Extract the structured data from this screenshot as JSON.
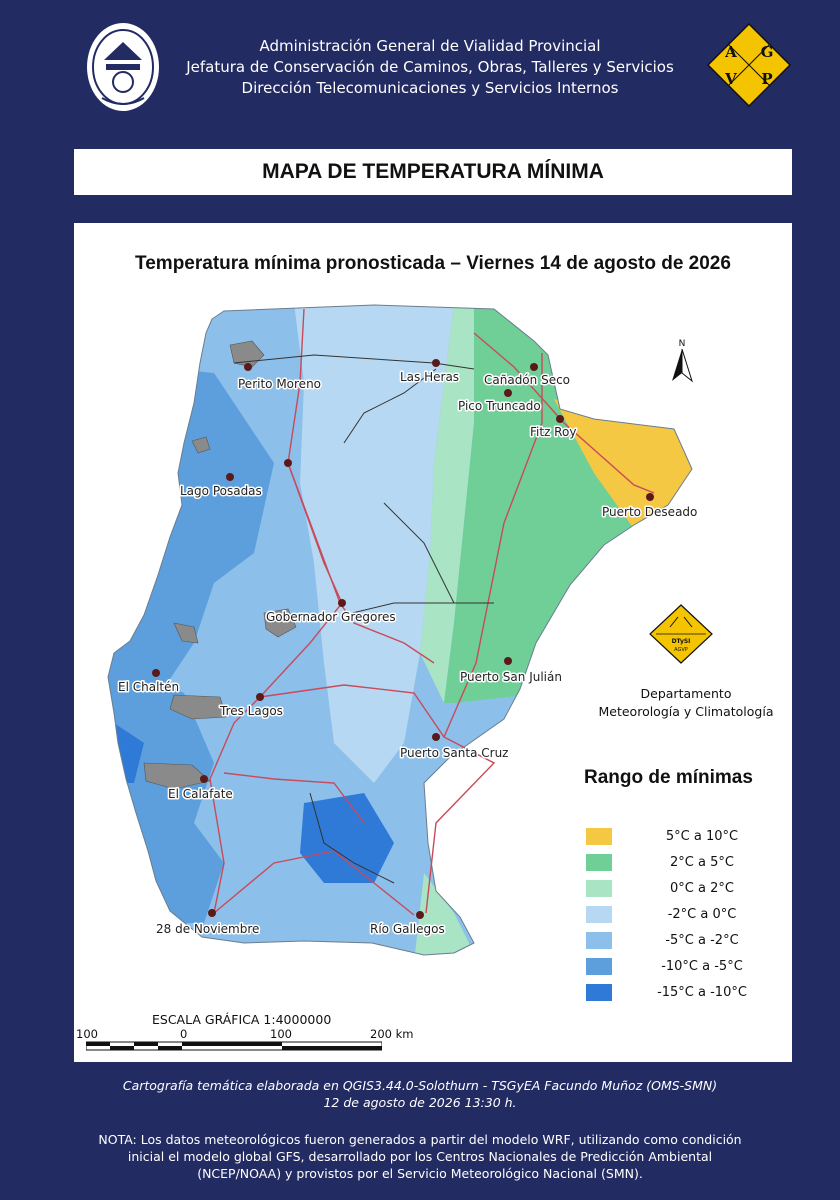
{
  "header": {
    "line1": "Administración General de Vialidad Provincial",
    "line2": "Jefatura de Conservación de Caminos, Obras, Talleres y Servicios",
    "line3": "Dirección Telecomunicaciones y Servicios Internos",
    "logo_letters": [
      "A",
      "G",
      "V",
      "P"
    ]
  },
  "title": "MAPA DE TEMPERATURA MÍNIMA",
  "map": {
    "subtitle": "Temperatura mínima pronosticada – Viernes 14 de agosto de 2026",
    "north_label": "N",
    "cities": [
      "Perito Moreno",
      "Las Heras",
      "Cañadón Seco",
      "Pico Truncado",
      "Fitz Roy",
      "Lago Posadas",
      "Puerto Deseado",
      "Gobernador Gregores",
      "Puerto San Julián",
      "El Chaltén",
      "Tres Lagos",
      "Puerto Santa Cruz",
      "El Calafate",
      "28 de Noviembre",
      "Río Gallegos"
    ]
  },
  "department": {
    "line1": "Departamento",
    "line2": "Meteorología y Climatología",
    "logo_text": [
      "DTySI",
      "AGVP"
    ]
  },
  "legend": {
    "title": "Rango de mínimas",
    "items": [
      {
        "label": "5°C a 10°C",
        "color": "#f4c842"
      },
      {
        "label": "2°C a 5°C",
        "color": "#6fcf97"
      },
      {
        "label": "0°C a 2°C",
        "color": "#a9e4c4"
      },
      {
        "label": "-2°C a 0°C",
        "color": "#b6d8f2"
      },
      {
        "label": "-5°C a -2°C",
        "color": "#8cbfea"
      },
      {
        "label": "-10°C a -5°C",
        "color": "#5c9fdc"
      },
      {
        "label": "-15°C a -10°C",
        "color": "#2f7ad6"
      }
    ]
  },
  "scale": {
    "title": "ESCALA GRÁFICA 1:4000000",
    "ticks": [
      "100",
      "0",
      "100",
      "200 km"
    ]
  },
  "footer": {
    "credit_line1": "Cartografía temática elaborada en QGIS3.44.0-Solothurn - TSGyEA Facundo Muñoz (OMS-SMN)",
    "credit_line2": "12 de agosto de 2026 13:30 h.",
    "note_line1": "NOTA: Los datos meteorológicos fueron generados a partir del modelo WRF, utilizando como condición",
    "note_line2": "inicial el modelo global GFS, desarrollado por los Centros Nacionales de Predicción Ambiental",
    "note_line3": "(NCEP/NOAA) y provistos por el Servicio Meteorológico Nacional (SMN)."
  }
}
